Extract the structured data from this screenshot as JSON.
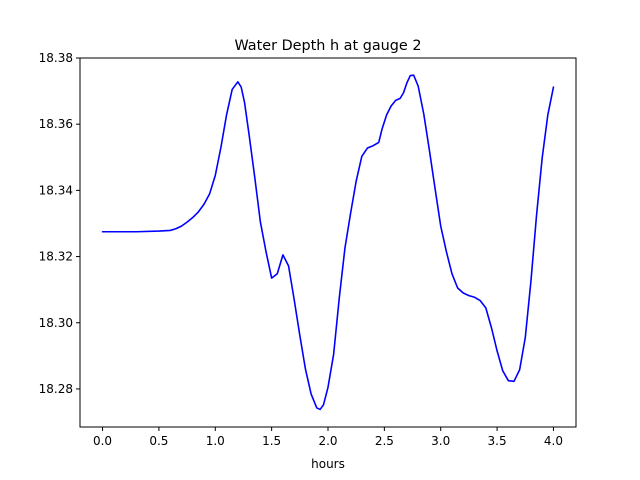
{
  "chart_data": {
    "type": "line",
    "title": "Water Depth h at gauge 2",
    "xlabel": "hours",
    "ylabel": "",
    "xlim": [
      -0.2,
      4.2
    ],
    "ylim": [
      18.2685,
      18.38
    ],
    "xticks": [
      0.0,
      0.5,
      1.0,
      1.5,
      2.0,
      2.5,
      3.0,
      3.5,
      4.0
    ],
    "xtick_labels": [
      "0.0",
      "0.5",
      "1.0",
      "1.5",
      "2.0",
      "2.5",
      "3.0",
      "3.5",
      "4.0"
    ],
    "yticks": [
      18.28,
      18.3,
      18.32,
      18.34,
      18.36,
      18.38
    ],
    "ytick_labels": [
      "18.28",
      "18.30",
      "18.32",
      "18.34",
      "18.36",
      "18.38"
    ],
    "grid": false,
    "series": [
      {
        "color": "#0000ff",
        "x": [
          0.0,
          0.3,
          0.5,
          0.6,
          0.65,
          0.7,
          0.75,
          0.8,
          0.85,
          0.9,
          0.95,
          1.0,
          1.05,
          1.1,
          1.15,
          1.2,
          1.23,
          1.26,
          1.3,
          1.35,
          1.4,
          1.45,
          1.5,
          1.55,
          1.6,
          1.65,
          1.7,
          1.75,
          1.8,
          1.85,
          1.9,
          1.93,
          1.96,
          2.0,
          2.05,
          2.1,
          2.15,
          2.2,
          2.25,
          2.3,
          2.35,
          2.4,
          2.45,
          2.48,
          2.52,
          2.56,
          2.6,
          2.64,
          2.67,
          2.7,
          2.73,
          2.76,
          2.8,
          2.85,
          2.9,
          2.95,
          3.0,
          3.05,
          3.1,
          3.15,
          3.2,
          3.25,
          3.3,
          3.35,
          3.4,
          3.45,
          3.5,
          3.55,
          3.6,
          3.65,
          3.7,
          3.75,
          3.8,
          3.85,
          3.9,
          3.95,
          4.0
        ],
        "y": [
          18.3275,
          18.3275,
          18.3277,
          18.3279,
          18.3284,
          18.3292,
          18.3304,
          18.3318,
          18.3335,
          18.3358,
          18.339,
          18.3445,
          18.353,
          18.3628,
          18.3705,
          18.3728,
          18.3712,
          18.3665,
          18.3568,
          18.344,
          18.3305,
          18.3215,
          18.3135,
          18.3148,
          18.3205,
          18.3172,
          18.307,
          18.2962,
          18.286,
          18.2785,
          18.2743,
          18.2738,
          18.2752,
          18.2805,
          18.2905,
          18.3075,
          18.3225,
          18.333,
          18.3428,
          18.3503,
          18.3528,
          18.3535,
          18.3545,
          18.3586,
          18.3628,
          18.3655,
          18.3672,
          18.3678,
          18.3695,
          18.3725,
          18.3747,
          18.3748,
          18.3715,
          18.363,
          18.352,
          18.3405,
          18.3292,
          18.3215,
          18.3148,
          18.3105,
          18.309,
          18.3082,
          18.3077,
          18.3067,
          18.3045,
          18.2985,
          18.2915,
          18.2855,
          18.2825,
          18.2823,
          18.2858,
          18.2955,
          18.3125,
          18.3325,
          18.3498,
          18.3628,
          18.3712
        ]
      }
    ]
  }
}
